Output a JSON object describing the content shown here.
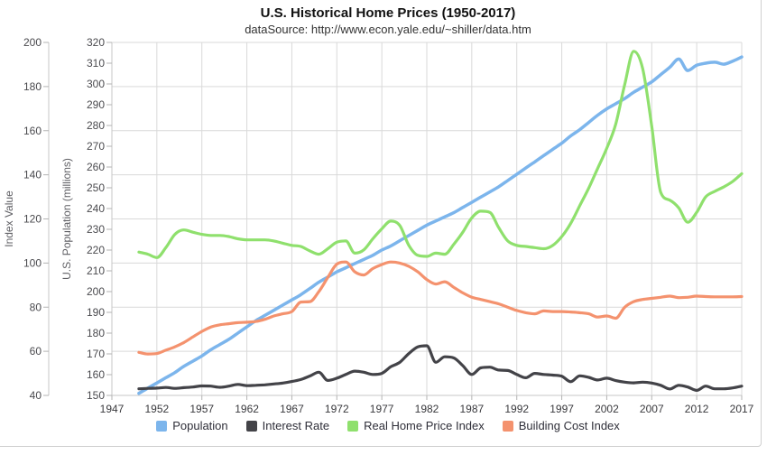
{
  "header": {
    "title": "U.S. Historical Home Prices (1950-2017)",
    "subtitle": "dataSource: http://www.econ.yale.edu/~shiller/data.htm"
  },
  "colors": {
    "population": "#7cb5ec",
    "interest_rate": "#434348",
    "real_home_price": "#8fe06d",
    "building_cost": "#f4926e",
    "gridline": "#d9d9d9",
    "axis_line": "#c7c7c7",
    "border": "#cfcfcf"
  },
  "chart_data": {
    "type": "line",
    "title": "U.S. Historical Home Prices (1950-2017)",
    "subtitle": "dataSource: http://www.econ.yale.edu/~shiller/data.htm",
    "grid": true,
    "legend_position": "bottom",
    "x": {
      "min": 1947,
      "max": 2017,
      "ticks": [
        1947,
        1952,
        1957,
        1962,
        1967,
        1972,
        1977,
        1982,
        1987,
        1992,
        1997,
        2002,
        2007,
        2012,
        2017
      ]
    },
    "axes": {
      "index": {
        "title": "Index Value",
        "min": 40,
        "max": 200,
        "tick_interval": 20,
        "ticks": [
          40,
          60,
          80,
          100,
          120,
          140,
          160,
          180,
          200
        ]
      },
      "population": {
        "title": "U.S. Population (millions)",
        "min": 150,
        "max": 320,
        "tick_interval": 10,
        "ticks": [
          150,
          160,
          170,
          180,
          190,
          200,
          210,
          220,
          230,
          240,
          250,
          260,
          270,
          280,
          290,
          300,
          310,
          320
        ]
      }
    },
    "series": [
      {
        "name": "Population",
        "color": "#7cb5ec",
        "axis": "population",
        "width": 3.5,
        "x_start": 1950,
        "x_step": 1,
        "values": [
          151,
          153.5,
          156,
          158.5,
          161,
          164,
          166.5,
          169,
          172,
          174.5,
          177,
          180,
          183,
          186,
          188.5,
          191,
          193.5,
          196,
          198.5,
          201.5,
          204.5,
          207,
          209.5,
          211.5,
          213.5,
          215.5,
          217.5,
          220,
          222,
          224.5,
          227,
          229.5,
          232,
          234,
          236,
          238,
          240.5,
          243,
          245.5,
          248,
          250.5,
          253.5,
          256.5,
          259.5,
          262.5,
          265.5,
          268.5,
          271.5,
          275,
          278,
          281.5,
          285,
          288,
          290.5,
          293,
          296,
          298.5,
          301,
          304.5,
          308,
          312,
          306.5,
          309,
          310,
          310.5,
          309.5,
          311,
          313
        ]
      },
      {
        "name": "Interest Rate",
        "color": "#434348",
        "axis": "index",
        "width": 3.2,
        "x_start": 1950,
        "x_step": 1,
        "values": [
          43,
          43.2,
          43.3,
          43.6,
          43.2,
          43.5,
          43.8,
          44.3,
          44.2,
          43.7,
          44.2,
          45,
          44.4,
          44.6,
          44.8,
          45.2,
          45.6,
          46.3,
          47.2,
          48.8,
          50.5,
          46.8,
          47.8,
          49.5,
          51,
          50.5,
          49.5,
          50,
          53,
          55,
          59,
          62,
          62.5,
          55,
          57.5,
          57,
          53.5,
          49.5,
          52.5,
          52.8,
          51.5,
          51.3,
          49.5,
          48,
          50,
          49.5,
          49.2,
          48.7,
          46.2,
          48.9,
          48.2,
          47,
          47.8,
          46.7,
          46,
          45.7,
          46,
          45.6,
          44.6,
          42.9,
          44.6,
          43.8,
          42.3,
          44.2,
          43,
          43,
          43.4,
          44.2
        ]
      },
      {
        "name": "Real Home Price Index",
        "color": "#8fe06d",
        "axis": "index",
        "width": 3.2,
        "x_start": 1950,
        "x_step": 1,
        "values": [
          105,
          104,
          102.5,
          107,
          113,
          115,
          114,
          113,
          112.5,
          112.5,
          112,
          111,
          110.5,
          110.5,
          110.5,
          110,
          109,
          108,
          107.5,
          105.5,
          104,
          106.5,
          109.5,
          110,
          104.5,
          106,
          111,
          115.5,
          119,
          117,
          108,
          103.5,
          103,
          104.5,
          104,
          108.5,
          114,
          120.5,
          123.5,
          123,
          116,
          110,
          108,
          107.5,
          107,
          106.5,
          108,
          112,
          118,
          126,
          134,
          143,
          152,
          163,
          181,
          196,
          188,
          162,
          132,
          128.5,
          125,
          118.5,
          123,
          130,
          132.5,
          134.5,
          137,
          140.5
        ]
      },
      {
        "name": "Building Cost Index",
        "color": "#f4926e",
        "axis": "index",
        "width": 3.2,
        "x_start": 1950,
        "x_step": 1,
        "values": [
          59.5,
          58.8,
          59,
          60.5,
          62,
          64,
          66.5,
          69,
          71,
          72,
          72.5,
          73,
          73.2,
          73.5,
          74.5,
          76,
          77,
          78,
          82.3,
          82.5,
          87,
          93.5,
          99.5,
          100.5,
          96,
          94.6,
          97.5,
          99.3,
          100.5,
          100,
          98.5,
          96,
          92.5,
          90.5,
          91.5,
          89,
          86.5,
          84.5,
          83.5,
          82.5,
          81.5,
          80,
          78.5,
          77.5,
          77,
          78.3,
          78,
          78,
          77.8,
          77.5,
          77,
          75.5,
          76,
          75,
          80,
          82.5,
          83.5,
          84,
          84.5,
          85,
          84.3,
          84.5,
          85,
          84.8,
          84.7,
          84.7,
          84.7,
          84.8
        ]
      }
    ]
  }
}
